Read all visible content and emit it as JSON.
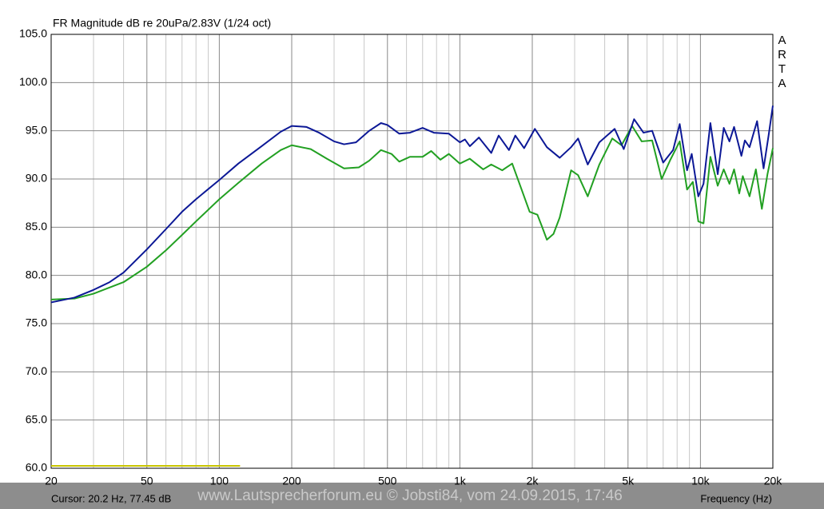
{
  "chart_data": {
    "type": "line",
    "title": "FR Magnitude dB re 20uPa/2.83V (1/24 oct)",
    "brand": "ARTA",
    "cursor_text": "Cursor: 20.2 Hz, 77.45 dB",
    "watermark": "www.Lautsprecherforum.eu © Jobsti84, vom 24.09.2015, 17:46",
    "x_label": "Frequency (Hz)",
    "xlog": true,
    "grid": true,
    "xlim": [
      20,
      20000
    ],
    "ylim": [
      60,
      105
    ],
    "xticks": [
      20,
      50,
      100,
      200,
      500,
      {
        "value": 1000,
        "label": "1k"
      },
      {
        "value": 2000,
        "label": "2k"
      },
      {
        "value": 5000,
        "label": "5k"
      },
      {
        "value": 10000,
        "label": "10k"
      },
      {
        "value": 20000,
        "label": "20k"
      }
    ],
    "xminor": [
      30,
      40,
      60,
      70,
      80,
      90,
      300,
      400,
      600,
      700,
      800,
      900,
      3000,
      4000,
      6000,
      7000,
      8000,
      9000
    ],
    "yticks": [
      {
        "value": 60,
        "label": "60.0"
      },
      {
        "value": 65,
        "label": "65.0"
      },
      {
        "value": 70,
        "label": "70.0"
      },
      {
        "value": 75,
        "label": "75.0"
      },
      {
        "value": 80,
        "label": "80.0"
      },
      {
        "value": 85,
        "label": "85.0"
      },
      {
        "value": 90,
        "label": "90.0"
      },
      {
        "value": 95,
        "label": "95.0"
      },
      {
        "value": 100,
        "label": "100.0"
      },
      {
        "value": 105,
        "label": "105.0"
      }
    ],
    "series": [
      {
        "color": "#c8c400",
        "x": [
          20,
          122
        ],
        "values": [
          60.25,
          60.25
        ]
      },
      {
        "color": "#22a022",
        "x": [
          20,
          25,
          30,
          40,
          50,
          60,
          70,
          80,
          100,
          120,
          150,
          180,
          200,
          240,
          280,
          330,
          380,
          420,
          470,
          520,
          560,
          620,
          700,
          760,
          830,
          900,
          1000,
          1100,
          1250,
          1350,
          1500,
          1650,
          1800,
          1950,
          2100,
          2200,
          2300,
          2450,
          2600,
          2900,
          3100,
          3400,
          3800,
          4300,
          4700,
          5200,
          5700,
          6300,
          6900,
          7500,
          8200,
          8800,
          9300,
          9800,
          10300,
          11000,
          11800,
          12500,
          13200,
          13800,
          14500,
          15000,
          16000,
          17000,
          18000,
          19000,
          20000
        ],
        "values": [
          77.5,
          77.6,
          78.1,
          79.3,
          80.9,
          82.6,
          84.2,
          85.6,
          87.9,
          89.6,
          91.6,
          93.0,
          93.5,
          93.1,
          92.1,
          91.1,
          91.2,
          91.9,
          93.0,
          92.6,
          91.8,
          92.3,
          92.3,
          92.9,
          92.0,
          92.6,
          91.6,
          92.1,
          91.0,
          91.5,
          90.9,
          91.6,
          89.0,
          86.6,
          86.3,
          85.0,
          83.7,
          84.3,
          86.0,
          90.9,
          90.4,
          88.2,
          91.5,
          94.2,
          93.5,
          95.5,
          93.9,
          94.0,
          90.0,
          92.0,
          93.9,
          88.9,
          89.7,
          85.6,
          85.4,
          92.3,
          89.3,
          91.0,
          89.5,
          91.0,
          88.5,
          90.3,
          88.2,
          91.0,
          86.9,
          90.5,
          93.2
        ]
      },
      {
        "color": "#0c1896",
        "x": [
          20,
          25,
          30,
          35,
          40,
          50,
          60,
          70,
          80,
          100,
          120,
          150,
          180,
          200,
          230,
          260,
          300,
          330,
          370,
          420,
          470,
          500,
          560,
          620,
          700,
          780,
          900,
          1000,
          1050,
          1100,
          1200,
          1350,
          1450,
          1600,
          1700,
          1850,
          2050,
          2300,
          2600,
          2900,
          3100,
          3400,
          3800,
          4400,
          4800,
          5300,
          5800,
          6300,
          7000,
          7700,
          8200,
          8800,
          9200,
          9800,
          10300,
          11000,
          11800,
          12500,
          13200,
          13800,
          14800,
          15300,
          16000,
          17200,
          18300,
          19200,
          20000
        ],
        "values": [
          77.2,
          77.7,
          78.5,
          79.3,
          80.3,
          82.7,
          84.8,
          86.6,
          87.9,
          89.9,
          91.6,
          93.4,
          94.9,
          95.5,
          95.4,
          94.8,
          93.9,
          93.6,
          93.8,
          95.0,
          95.8,
          95.6,
          94.7,
          94.8,
          95.3,
          94.8,
          94.7,
          93.8,
          94.1,
          93.4,
          94.3,
          92.7,
          94.5,
          93.0,
          94.5,
          93.2,
          95.2,
          93.3,
          92.2,
          93.3,
          94.2,
          91.5,
          93.8,
          95.2,
          93.1,
          96.2,
          94.8,
          95.0,
          91.7,
          93.0,
          95.7,
          90.9,
          92.6,
          88.2,
          89.5,
          95.8,
          90.5,
          95.3,
          93.9,
          95.4,
          92.4,
          94.0,
          93.3,
          96.0,
          91.1,
          94.5,
          97.6
        ]
      }
    ]
  }
}
